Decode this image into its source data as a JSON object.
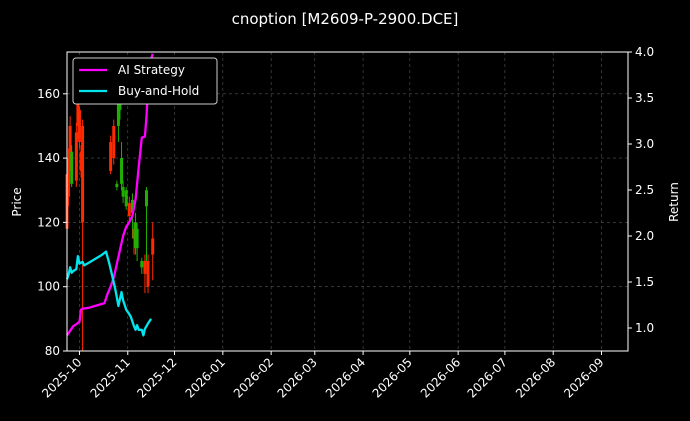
{
  "chart_data": {
    "type": "line",
    "title": "cnoption [M2609-P-2900.DCE]",
    "ylabel_left": "Price",
    "ylabel_right": "Return",
    "ylim_left": [
      80,
      173
    ],
    "ylim_right": [
      0.75,
      4.0
    ],
    "xlim": [
      "2025-09-23",
      "2026-09-18"
    ],
    "y_ticks_left": [
      80,
      100,
      120,
      140,
      160
    ],
    "y_ticks_right": [
      1.0,
      1.5,
      2.0,
      2.5,
      3.0,
      3.5,
      4.0
    ],
    "x_ticks": [
      {
        "date": "2025-10-01",
        "label": "2025-10"
      },
      {
        "date": "2025-11-01",
        "label": "2025-11"
      },
      {
        "date": "2025-12-01",
        "label": "2025-12"
      },
      {
        "date": "2026-01-01",
        "label": "2026-01"
      },
      {
        "date": "2026-02-01",
        "label": "2026-02"
      },
      {
        "date": "2026-03-01",
        "label": "2026-03"
      },
      {
        "date": "2026-04-01",
        "label": "2026-04"
      },
      {
        "date": "2026-05-01",
        "label": "2026-05"
      },
      {
        "date": "2026-06-01",
        "label": "2026-06"
      },
      {
        "date": "2026-07-01",
        "label": "2026-07"
      },
      {
        "date": "2026-08-01",
        "label": "2026-08"
      },
      {
        "date": "2026-09-01",
        "label": "2026-09"
      }
    ],
    "grid": true,
    "legend_position": "top-left",
    "candles": [
      {
        "date": "2025-09-23",
        "open": 118,
        "close": 135,
        "high": 137,
        "low": 110,
        "color": "#ff2a00"
      },
      {
        "date": "2025-09-24",
        "open": 140,
        "close": 128,
        "high": 143,
        "low": 125,
        "color": "#ff2a00"
      },
      {
        "date": "2025-09-25",
        "open": 150,
        "close": 138,
        "high": 153,
        "low": 136,
        "color": "#ff2a00"
      },
      {
        "date": "2025-09-26",
        "open": 132,
        "close": 142,
        "high": 144,
        "low": 131,
        "color": "#1fb000"
      },
      {
        "date": "2025-09-29",
        "open": 148,
        "close": 133,
        "high": 151,
        "low": 131,
        "color": "#ff2a00"
      },
      {
        "date": "2025-09-30",
        "open": 157,
        "close": 150,
        "high": 159,
        "low": 146,
        "color": "#ff2a00"
      },
      {
        "date": "2025-10-01",
        "open": 155,
        "close": 145,
        "high": 156,
        "low": 143,
        "color": "#ff2a00"
      },
      {
        "date": "2025-10-02",
        "open": 142,
        "close": 136,
        "high": 144,
        "low": 134,
        "color": "#ff2a00"
      },
      {
        "date": "2025-10-03",
        "open": 150,
        "close": 120,
        "high": 152,
        "low": 80,
        "color": "#ff2a00"
      },
      {
        "date": "2025-10-21",
        "open": 145,
        "close": 136,
        "high": 147,
        "low": 135,
        "color": "#ff2a00"
      },
      {
        "date": "2025-10-23",
        "open": 150,
        "close": 140,
        "high": 152,
        "low": 138,
        "color": "#ff2a00"
      },
      {
        "date": "2025-10-25",
        "open": 131,
        "close": 132,
        "high": 133,
        "low": 130,
        "color": "#1fb000"
      },
      {
        "date": "2025-10-26",
        "open": 150,
        "close": 160,
        "high": 162,
        "low": 145,
        "color": "#1fb000"
      },
      {
        "date": "2025-10-27",
        "open": 155,
        "close": 165,
        "high": 168,
        "low": 152,
        "color": "#1fb000"
      },
      {
        "date": "2025-10-28",
        "open": 132,
        "close": 140,
        "high": 145,
        "low": 130,
        "color": "#1fb000"
      },
      {
        "date": "2025-10-29",
        "open": 128,
        "close": 131,
        "high": 133,
        "low": 126,
        "color": "#1fb000"
      },
      {
        "date": "2025-10-31",
        "open": 125,
        "close": 130,
        "high": 131,
        "low": 124,
        "color": "#1fb000"
      },
      {
        "date": "2025-11-02",
        "open": 126,
        "close": 122,
        "high": 128,
        "low": 120,
        "color": "#ff2a00"
      },
      {
        "date": "2025-11-04",
        "open": 123,
        "close": 127,
        "high": 129,
        "low": 115,
        "color": "#1fb000"
      },
      {
        "date": "2025-11-05",
        "open": 118,
        "close": 115,
        "high": 120,
        "low": 110,
        "color": "#ff2a00"
      },
      {
        "date": "2025-11-06",
        "open": 112,
        "close": 120,
        "high": 123,
        "low": 110,
        "color": "#1fb000"
      },
      {
        "date": "2025-11-07",
        "open": 112,
        "close": 118,
        "high": 120,
        "low": 108,
        "color": "#1fb000"
      },
      {
        "date": "2025-11-10",
        "open": 106,
        "close": 108,
        "high": 109,
        "low": 104,
        "color": "#1fb000"
      },
      {
        "date": "2025-11-12",
        "open": 108,
        "close": 104,
        "high": 110,
        "low": 98,
        "color": "#ff2a00"
      },
      {
        "date": "2025-11-13",
        "open": 125,
        "close": 130,
        "high": 131,
        "low": 108,
        "color": "#1fb000"
      },
      {
        "date": "2025-11-14",
        "open": 108,
        "close": 100,
        "high": 110,
        "low": 98,
        "color": "#ff2a00"
      },
      {
        "date": "2025-11-17",
        "open": 115,
        "close": 110,
        "high": 120,
        "low": 102,
        "color": "#ff2a00"
      }
    ],
    "series": [
      {
        "name": "AI Strategy",
        "color": "#ff00ff",
        "axis": "right",
        "points": [
          [
            "2025-09-23",
            0.92
          ],
          [
            "2025-09-25",
            0.97
          ],
          [
            "2025-09-27",
            1.02
          ],
          [
            "2025-09-29",
            1.04
          ],
          [
            "2025-10-01",
            1.07
          ],
          [
            "2025-10-02",
            1.2
          ],
          [
            "2025-10-03",
            1.21
          ],
          [
            "2025-10-07",
            1.22
          ],
          [
            "2025-10-13",
            1.25
          ],
          [
            "2025-10-15",
            1.26
          ],
          [
            "2025-10-17",
            1.27
          ],
          [
            "2025-10-19",
            1.37
          ],
          [
            "2025-10-21",
            1.45
          ],
          [
            "2025-10-23",
            1.55
          ],
          [
            "2025-10-25",
            1.7
          ],
          [
            "2025-10-27",
            1.85
          ],
          [
            "2025-10-29",
            2.0
          ],
          [
            "2025-10-31",
            2.1
          ],
          [
            "2025-11-02",
            2.15
          ],
          [
            "2025-11-04",
            2.22
          ],
          [
            "2025-11-06",
            2.4
          ],
          [
            "2025-11-08",
            2.75
          ],
          [
            "2025-11-10",
            3.07
          ],
          [
            "2025-11-12",
            3.08
          ],
          [
            "2025-11-13",
            3.3
          ],
          [
            "2025-11-14",
            3.62
          ],
          [
            "2025-11-16",
            3.92
          ],
          [
            "2025-11-17",
            3.98
          ]
        ]
      },
      {
        "name": "Buy-and-Hold",
        "color": "#00e5ee",
        "axis": "right",
        "points": [
          [
            "2025-09-23",
            1.53
          ],
          [
            "2025-09-24",
            1.58
          ],
          [
            "2025-09-25",
            1.66
          ],
          [
            "2025-09-26",
            1.6
          ],
          [
            "2025-09-27",
            1.62
          ],
          [
            "2025-09-29",
            1.64
          ],
          [
            "2025-09-30",
            1.78
          ],
          [
            "2025-10-01",
            1.7
          ],
          [
            "2025-10-03",
            1.72
          ],
          [
            "2025-10-04",
            1.68
          ],
          [
            "2025-10-07",
            1.71
          ],
          [
            "2025-10-11",
            1.75
          ],
          [
            "2025-10-15",
            1.79
          ],
          [
            "2025-10-18",
            1.83
          ],
          [
            "2025-10-20",
            1.71
          ],
          [
            "2025-10-22",
            1.57
          ],
          [
            "2025-10-24",
            1.42
          ],
          [
            "2025-10-25",
            1.33
          ],
          [
            "2025-10-26",
            1.24
          ],
          [
            "2025-10-28",
            1.39
          ],
          [
            "2025-10-29",
            1.3
          ],
          [
            "2025-10-31",
            1.2
          ],
          [
            "2025-11-02",
            1.15
          ],
          [
            "2025-11-03",
            1.12
          ],
          [
            "2025-11-05",
            1.02
          ],
          [
            "2025-11-06",
            0.98
          ],
          [
            "2025-11-07",
            1.03
          ],
          [
            "2025-11-08",
            0.98
          ],
          [
            "2025-11-10",
            0.98
          ],
          [
            "2025-11-11",
            0.92
          ],
          [
            "2025-11-12",
            0.99
          ],
          [
            "2025-11-14",
            1.05
          ],
          [
            "2025-11-16",
            1.1
          ]
        ]
      }
    ]
  }
}
